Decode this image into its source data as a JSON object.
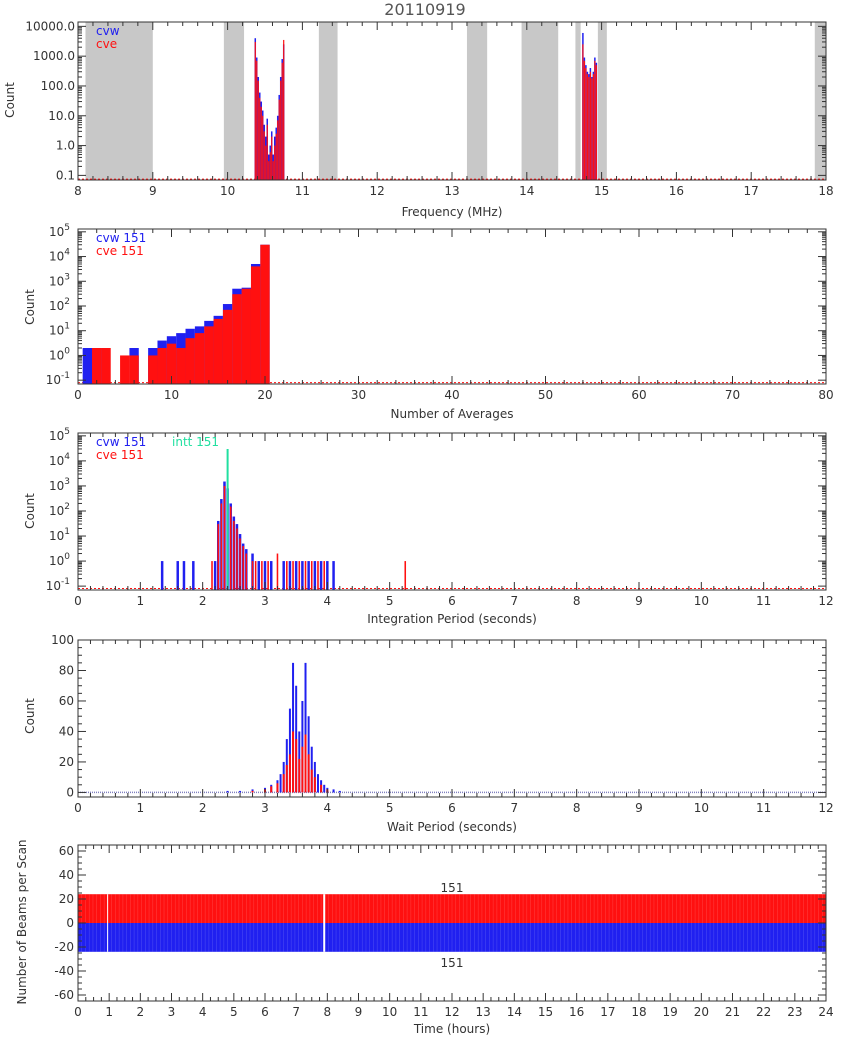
{
  "figure_title": "20110919",
  "colors": {
    "cvw": "#2020f0",
    "cve": "#ff1010",
    "intt": "#20e0a0",
    "gap": "#c8c8c8",
    "axis": "#333333"
  },
  "chart_data": [
    {
      "type": "bar",
      "title": "20110919",
      "xlabel": "Frequency (MHz)",
      "ylabel": "Count",
      "xlim": [
        8,
        18
      ],
      "ylim": [
        0.07,
        14000
      ],
      "yscale": "log",
      "x_ticks": [
        "8",
        "9",
        "10",
        "11",
        "12",
        "13",
        "14",
        "15",
        "16",
        "17",
        "18"
      ],
      "y_ticks": [
        "0.1",
        "1.0",
        "10.0",
        "100.0",
        "1000.0",
        "10000.0"
      ],
      "legend": [
        "cvw",
        "cve"
      ],
      "legend_position": "top-left",
      "shaded_bands": [
        [
          8.1,
          9.0
        ],
        [
          9.95,
          10.22
        ],
        [
          11.22,
          11.47
        ],
        [
          13.2,
          13.47
        ],
        [
          13.93,
          14.42
        ],
        [
          14.65,
          14.72
        ],
        [
          14.95,
          15.07
        ],
        [
          17.85,
          18.0
        ]
      ],
      "series": [
        {
          "name": "cvw",
          "x": [
            10.37,
            10.39,
            10.41,
            10.43,
            10.45,
            10.47,
            10.49,
            10.51,
            10.53,
            10.55,
            10.57,
            10.59,
            10.61,
            10.63,
            10.65,
            10.67,
            10.69,
            10.71,
            10.73,
            10.75,
            14.75,
            14.77,
            14.79,
            14.81,
            14.83,
            14.85,
            14.87,
            14.89,
            14.91,
            14.93
          ],
          "values": [
            4000,
            900,
            200,
            60,
            30,
            15,
            5,
            2,
            8,
            0.5,
            1,
            3,
            0.5,
            2,
            4,
            10,
            50,
            200,
            800,
            2500,
            6000,
            900,
            500,
            300,
            250,
            400,
            200,
            300,
            900,
            600
          ]
        },
        {
          "name": "cve",
          "x": [
            10.37,
            10.39,
            10.41,
            10.43,
            10.45,
            10.47,
            10.49,
            10.51,
            10.53,
            10.55,
            10.57,
            10.59,
            10.61,
            10.63,
            10.65,
            10.67,
            10.69,
            10.71,
            10.73,
            10.75,
            14.75,
            14.77,
            14.79,
            14.81,
            14.83,
            14.85,
            14.87,
            14.89,
            14.91,
            14.93
          ],
          "values": [
            3000,
            700,
            150,
            40,
            20,
            10,
            3,
            1,
            5,
            0.3,
            0.6,
            2,
            0.3,
            1,
            2.5,
            7,
            35,
            150,
            600,
            3500,
            2500,
            700,
            400,
            250,
            200,
            300,
            180,
            250,
            700,
            500
          ]
        }
      ]
    },
    {
      "type": "bar",
      "xlabel": "Number of Averages",
      "ylabel": "Count",
      "xlim": [
        0,
        80
      ],
      "ylim": [
        0.07,
        130000
      ],
      "yscale": "log",
      "x_ticks": [
        "0",
        "10",
        "20",
        "30",
        "40",
        "50",
        "60",
        "70",
        "80"
      ],
      "legend": [
        "cvw 151",
        "cve 151"
      ],
      "legend_position": "top-left",
      "series": [
        {
          "name": "cvw 151",
          "x": [
            1,
            2,
            3,
            4,
            5,
            6,
            7,
            8,
            9,
            10,
            11,
            12,
            13,
            14,
            15,
            16,
            17,
            18,
            19,
            20
          ],
          "values": [
            2,
            2,
            0,
            0,
            0,
            2,
            0,
            2,
            4,
            6,
            8,
            12,
            15,
            25,
            40,
            120,
            500,
            550,
            5000,
            30000
          ]
        },
        {
          "name": "cve 151",
          "x": [
            1,
            2,
            3,
            4,
            5,
            6,
            7,
            8,
            9,
            10,
            11,
            12,
            13,
            14,
            15,
            16,
            17,
            18,
            19,
            20
          ],
          "values": [
            0,
            2,
            2,
            0,
            1,
            1,
            0,
            1,
            2,
            3,
            2,
            5,
            8,
            15,
            30,
            70,
            300,
            500,
            4000,
            30000
          ]
        }
      ]
    },
    {
      "type": "bar",
      "xlabel": "Integration Period (seconds)",
      "ylabel": "Count",
      "xlim": [
        0,
        12
      ],
      "ylim": [
        0.07,
        130000
      ],
      "yscale": "log",
      "x_ticks": [
        "0",
        "1",
        "2",
        "3",
        "4",
        "5",
        "6",
        "7",
        "8",
        "9",
        "10",
        "11",
        "12"
      ],
      "legend": [
        "cvw 151",
        "cve 151",
        "intt 151"
      ],
      "legend_position": "top-left",
      "series": [
        {
          "name": "cvw 151",
          "x": [
            1.35,
            1.6,
            1.7,
            1.85,
            2.2,
            2.25,
            2.3,
            2.35,
            2.4,
            2.45,
            2.5,
            2.55,
            2.6,
            2.65,
            2.7,
            2.8,
            2.9,
            3.0,
            3.1,
            3.3,
            3.4,
            3.5,
            3.6,
            3.7,
            3.8,
            3.9,
            4.0,
            4.1
          ],
          "values": [
            1,
            1,
            1,
            1,
            1,
            40,
            300,
            1500,
            800,
            200,
            60,
            30,
            12,
            5,
            3,
            2,
            1,
            1,
            1,
            1,
            1,
            1,
            1,
            1,
            1,
            1,
            1,
            1
          ]
        },
        {
          "name": "cve 151",
          "x": [
            2.15,
            2.25,
            2.3,
            2.35,
            2.4,
            2.45,
            2.5,
            2.55,
            2.6,
            2.65,
            2.7,
            2.8,
            2.85,
            2.95,
            3.05,
            3.2,
            3.35,
            3.45,
            3.55,
            3.65,
            3.75,
            3.85,
            3.95,
            5.25
          ],
          "values": [
            1,
            30,
            200,
            1000,
            600,
            150,
            40,
            20,
            8,
            4,
            2,
            1,
            1,
            1,
            1,
            2,
            1,
            1,
            1,
            1,
            1,
            1,
            1,
            1
          ]
        },
        {
          "name": "intt 151",
          "x": [
            2.4
          ],
          "values": [
            30000
          ]
        }
      ]
    },
    {
      "type": "bar",
      "xlabel": "Wait Period (seconds)",
      "ylabel": "Count",
      "xlim": [
        0,
        12
      ],
      "ylim": [
        -3,
        100
      ],
      "yscale": "linear",
      "x_ticks": [
        "0",
        "1",
        "2",
        "3",
        "4",
        "5",
        "6",
        "7",
        "8",
        "9",
        "10",
        "11",
        "12"
      ],
      "y_ticks": [
        "0",
        "20",
        "40",
        "60",
        "80",
        "100"
      ],
      "series": [
        {
          "name": "cvw",
          "x": [
            2.4,
            2.6,
            2.8,
            3.0,
            3.1,
            3.2,
            3.25,
            3.3,
            3.35,
            3.4,
            3.45,
            3.5,
            3.55,
            3.6,
            3.65,
            3.7,
            3.75,
            3.8,
            3.85,
            3.9,
            3.95,
            4.0,
            4.1,
            4.2
          ],
          "values": [
            1,
            1,
            2,
            3,
            5,
            8,
            12,
            20,
            35,
            55,
            85,
            70,
            40,
            60,
            85,
            50,
            30,
            20,
            12,
            8,
            5,
            3,
            2,
            1
          ]
        },
        {
          "name": "cve",
          "x": [
            2.8,
            3.0,
            3.1,
            3.2,
            3.3,
            3.35,
            3.4,
            3.45,
            3.5,
            3.55,
            3.6,
            3.65,
            3.7,
            3.75,
            3.8,
            3.9,
            4.0
          ],
          "values": [
            1,
            2,
            4,
            6,
            12,
            18,
            25,
            40,
            35,
            22,
            30,
            38,
            25,
            15,
            10,
            5,
            2
          ]
        }
      ]
    },
    {
      "type": "bar",
      "xlabel": "Time (hours)",
      "ylabel": "Number of Beams per Scan",
      "xlim": [
        0,
        24
      ],
      "ylim": [
        -65,
        65
      ],
      "yscale": "linear",
      "x_ticks": [
        "0",
        "1",
        "2",
        "3",
        "4",
        "5",
        "6",
        "7",
        "8",
        "9",
        "10",
        "11",
        "12",
        "13",
        "14",
        "15",
        "16",
        "17",
        "18",
        "19",
        "20",
        "21",
        "22",
        "23",
        "24"
      ],
      "y_ticks": [
        "-60",
        "-40",
        "-20",
        "0",
        "20",
        "40",
        "60"
      ],
      "annotations": [
        "151",
        "151"
      ],
      "series": [
        {
          "name": "cve",
          "x_range": [
            0,
            24
          ],
          "values": [
            24
          ],
          "gaps": [
            0.95,
            7.9
          ]
        },
        {
          "name": "cvw",
          "x_range": [
            0,
            24
          ],
          "values": [
            -24
          ],
          "gaps": [
            0.95,
            7.9
          ]
        }
      ]
    }
  ]
}
